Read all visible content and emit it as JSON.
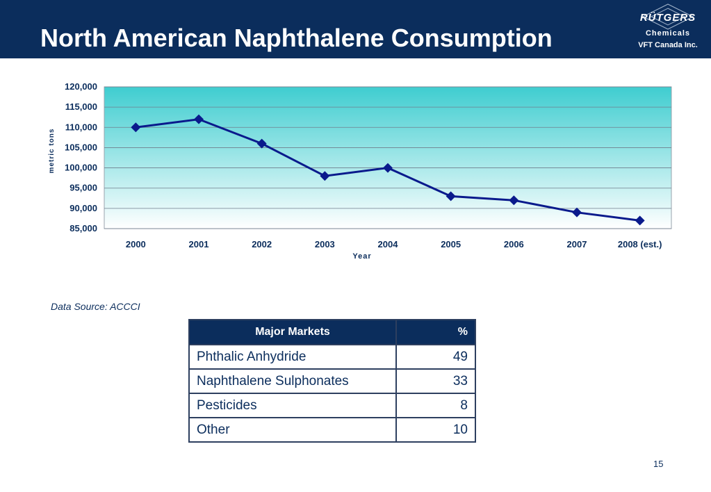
{
  "header": {
    "title": "North American Naphthalene Consumption",
    "logo_brand": "RÜTGERS",
    "logo_sub": "Chemicals",
    "logo_company": "VFT Canada Inc."
  },
  "chart_data": {
    "type": "line",
    "categories": [
      "2000",
      "2001",
      "2002",
      "2003",
      "2004",
      "2005",
      "2006",
      "2007",
      "2008 (est.)"
    ],
    "series": [
      {
        "values": [
          110000,
          112000,
          106000,
          98000,
          100000,
          93000,
          92000,
          89000,
          87000
        ]
      }
    ],
    "xlabel": "Year",
    "ylabel": "metric tons",
    "ylim": [
      85000,
      120000
    ],
    "yticks": [
      "85,000",
      "90,000",
      "95,000",
      "100,000",
      "105,000",
      "110,000",
      "115,000",
      "120,000"
    ],
    "ytick_values": [
      85000,
      90000,
      95000,
      100000,
      105000,
      110000,
      115000,
      120000
    ],
    "grid": true,
    "colors": {
      "line": "#0a1a8c",
      "marker": "#0a1a8c",
      "bg_top": "#3fcdd0",
      "bg_bottom": "#ffffff",
      "grid": "#6f7d8c",
      "axis_text": "#0b2d5c"
    }
  },
  "source": "Data Source: ACCCI",
  "table": {
    "headers": [
      "Major Markets",
      "%"
    ],
    "rows": [
      [
        "Phthalic Anhydride",
        "49"
      ],
      [
        "Naphthalene Sulphonates",
        "33"
      ],
      [
        "Pesticides",
        "8"
      ],
      [
        "Other",
        "10"
      ]
    ]
  },
  "page_number": "15",
  "colors": {
    "header_bg": "#0b2d5c",
    "text": "#0b2d5c"
  }
}
